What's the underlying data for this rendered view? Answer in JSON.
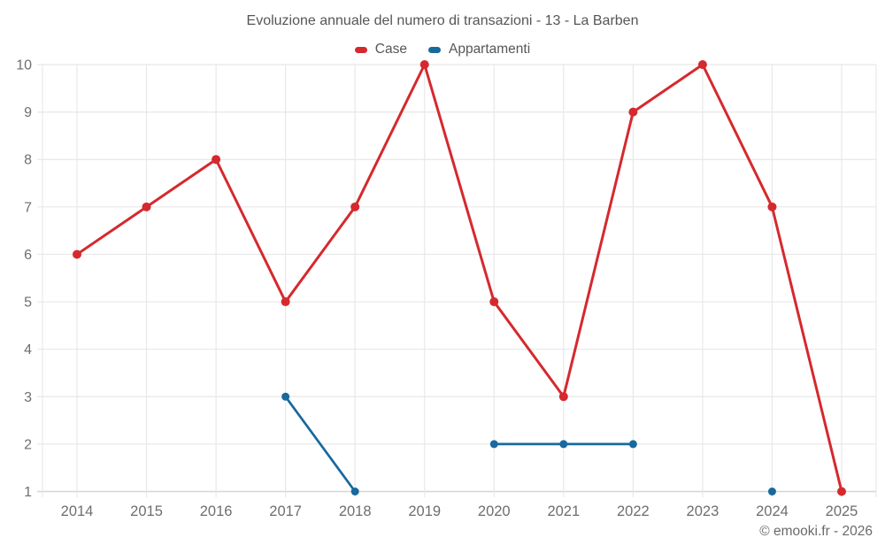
{
  "header": {
    "title": "Evoluzione annuale del numero di transazioni - 13 - La Barben"
  },
  "footer": {
    "credit": "© emooki.fr - 2026"
  },
  "chart_data": {
    "type": "line",
    "title": "Evoluzione annuale del numero di transazioni - 13 - La Barben",
    "x": [
      "2014",
      "2015",
      "2016",
      "2017",
      "2018",
      "2019",
      "2020",
      "2021",
      "2022",
      "2023",
      "2024",
      "2025"
    ],
    "series": [
      {
        "name": "Case",
        "color": "#d5292e",
        "values": [
          6,
          7,
          8,
          5,
          7,
          10,
          5,
          3,
          9,
          10,
          7,
          1
        ]
      },
      {
        "name": "Appartamenti",
        "color": "#17699e",
        "values": [
          null,
          null,
          null,
          3,
          1,
          null,
          2,
          2,
          2,
          null,
          1,
          null
        ]
      }
    ],
    "yticks": [
      1,
      2,
      3,
      4,
      5,
      6,
      7,
      8,
      9,
      10
    ],
    "ylim": [
      1,
      10
    ],
    "xlabel": "",
    "ylabel": "",
    "grid": true,
    "legend_position": "top",
    "colors": {
      "gridline": "#e8e8e8",
      "axis_line": "#d6d6d6",
      "tick_label": "#6e6e6e"
    }
  }
}
